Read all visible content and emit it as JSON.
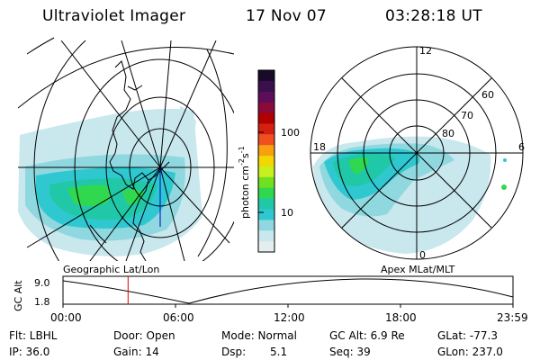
{
  "header": {
    "instrument": "Ultraviolet Imager",
    "date": "17 Nov 07",
    "time": "03:28:18 UT"
  },
  "left_panel": {
    "caption": "Geographic Lat/Lon"
  },
  "colorbar": {
    "unit_label": "photon cm",
    "unit_exp1": "-2",
    "unit_s": "s",
    "unit_exp2": "-1",
    "tick_100": "100",
    "tick_10": "10",
    "colors": [
      "#1a0a2a",
      "#3a0f4d",
      "#5c0e5a",
      "#8a0a3a",
      "#b00000",
      "#d42010",
      "#f05020",
      "#f8a010",
      "#f0d800",
      "#c8f020",
      "#70e020",
      "#30d850",
      "#20c8a8",
      "#30c8d0",
      "#90d8e0",
      "#c8e8ee",
      "#e4eef0"
    ]
  },
  "right_panel": {
    "caption": "Apex MLat/MLT",
    "mlt_12": "12",
    "mlt_18": "18",
    "mlt_6": "6",
    "mlt_0": "0",
    "mlat_60": "60",
    "mlat_70": "70",
    "mlat_80": "80"
  },
  "altitude_plot": {
    "ylabel": "GC Alt",
    "ytick_top": "9.0",
    "ytick_bottom": "1.8",
    "xticks": [
      "00:00",
      "06:00",
      "12:00",
      "18:00",
      "23:59"
    ],
    "current_time_fraction": 0.1445
  },
  "info": {
    "flt": "Flt: LBHL",
    "ip": "IP: 36.0",
    "door": "Door: Open",
    "gain": "Gain: 14",
    "mode": "Mode: Normal",
    "dsp_label": "Dsp:",
    "dsp_value": "5.1",
    "gc_alt": "GC Alt: 6.9 Re",
    "seq": "Seq: 39",
    "glat": "GLat: -77.3",
    "glon": "GLon: 237.0"
  }
}
